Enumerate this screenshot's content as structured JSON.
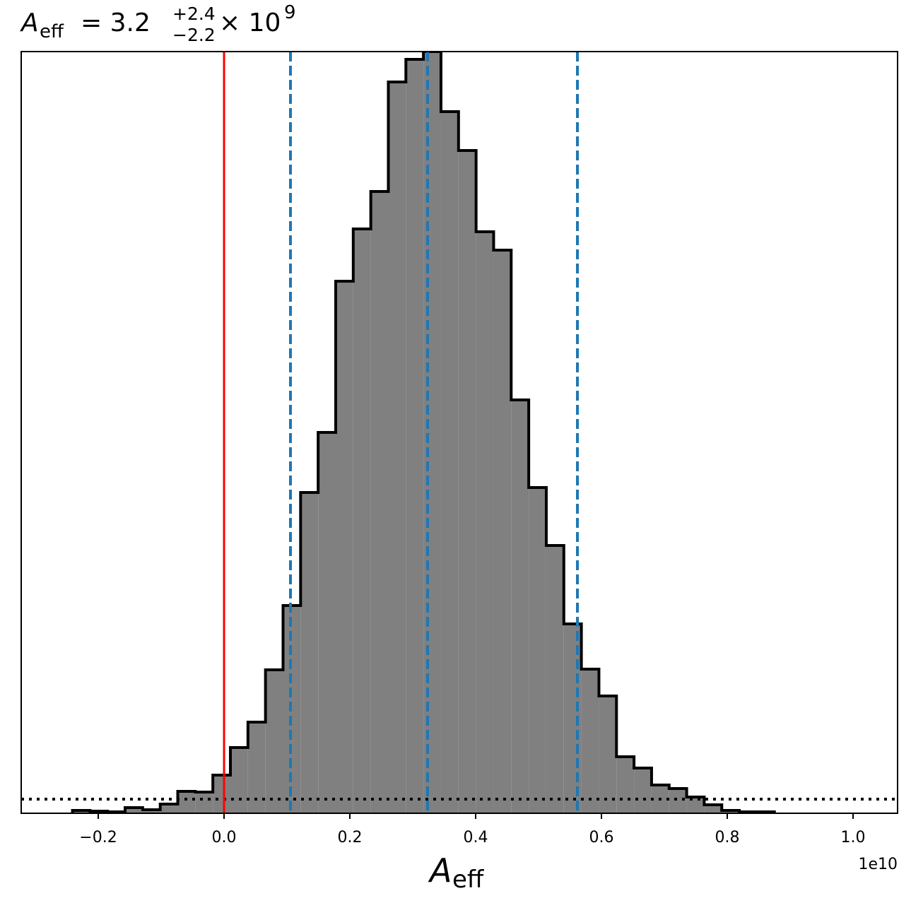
{
  "chart_data": {
    "type": "histogram",
    "title": {
      "symbol": "A",
      "subscript": "eff",
      "equals": "= 3.2",
      "upper": "+2.4",
      "lower": "−2.2",
      "times": "× 10",
      "exponent": "9"
    },
    "x_label": {
      "symbol": "A",
      "subscript": "eff"
    },
    "x_offset_label": "1e10",
    "bins": [
      -0.241,
      -0.2131,
      -0.1852,
      -0.1573,
      -0.1294,
      -0.1015,
      -0.0736,
      -0.0457,
      -0.0178,
      0.0101,
      0.038,
      0.0659,
      0.0938,
      0.1217,
      0.1496,
      0.1775,
      0.2054,
      0.2333,
      0.2612,
      0.2891,
      0.317,
      0.3449,
      0.3728,
      0.4007,
      0.4286,
      0.4565,
      0.4844,
      0.5123,
      0.5402,
      0.5681,
      0.596,
      0.6239,
      0.6518,
      0.6797,
      0.7076,
      0.7355,
      0.7634,
      0.7913,
      0.8192,
      0.8471,
      0.875
    ],
    "counts": [
      4,
      3,
      2,
      8,
      5,
      13,
      31,
      30,
      54,
      93,
      129,
      203,
      294,
      454,
      539,
      753,
      827,
      880,
      1035,
      1067,
      1078,
      993,
      938,
      823,
      797,
      585,
      461,
      379,
      268,
      204,
      166,
      80,
      64,
      40,
      35,
      23,
      12,
      4,
      2,
      2
    ],
    "color": "#808080",
    "edge_color": "#000000",
    "xlim": [
      -0.3225,
      1.0708
    ],
    "ylim": [
      0,
      1078
    ],
    "xticks": [
      {
        "value": -0.2,
        "label": "−0.2"
      },
      {
        "value": 0,
        "label": "0.0"
      },
      0.2,
      0.4,
      0.6,
      0.8,
      {
        "value": 1.0,
        "label": "1.0"
      }
    ],
    "truth_line": {
      "value": 0,
      "color": "#ff0000"
    },
    "quantile_lines": {
      "values": [
        0.1056,
        0.3236,
        0.5618
      ],
      "color": "#1f77b4"
    },
    "dotted_line": 20
  }
}
